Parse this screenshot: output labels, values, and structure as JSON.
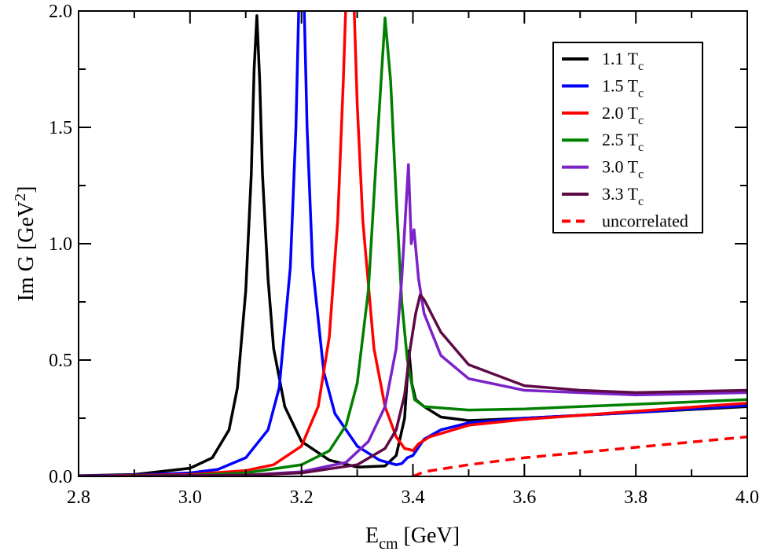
{
  "chart_data": {
    "type": "line",
    "xlabel": {
      "main": "E",
      "sub": "cm",
      "rest": " [GeV]"
    },
    "ylabel": {
      "main": "Im G [GeV",
      "sup": "2",
      "rest": "]"
    },
    "xlim": [
      2.8,
      4.0
    ],
    "ylim": [
      0.0,
      2.0
    ],
    "x_ticks": [
      "2.8",
      "3.0",
      "3.2",
      "3.4",
      "3.6",
      "3.8",
      "4.0"
    ],
    "y_ticks": [
      "0.0",
      "0.5",
      "1.0",
      "1.5",
      "2.0"
    ],
    "grid": false,
    "legend_position": "top-right",
    "series": [
      {
        "name_main": "1.1 T",
        "name_sub": "c",
        "color": "#000000",
        "dash": false,
        "points": [
          [
            2.8,
            0.003
          ],
          [
            2.9,
            0.008
          ],
          [
            3.0,
            0.035
          ],
          [
            3.04,
            0.08
          ],
          [
            3.055,
            0.14
          ],
          [
            3.07,
            0.2
          ],
          [
            3.085,
            0.38
          ],
          [
            3.1,
            0.8
          ],
          [
            3.11,
            1.3
          ],
          [
            3.115,
            1.75
          ],
          [
            3.12,
            1.98
          ],
          [
            3.125,
            1.7
          ],
          [
            3.13,
            1.3
          ],
          [
            3.14,
            0.85
          ],
          [
            3.15,
            0.55
          ],
          [
            3.17,
            0.3
          ],
          [
            3.2,
            0.15
          ],
          [
            3.25,
            0.07
          ],
          [
            3.3,
            0.04
          ],
          [
            3.35,
            0.045
          ],
          [
            3.37,
            0.09
          ],
          [
            3.385,
            0.25
          ],
          [
            3.393,
            0.54
          ],
          [
            3.398,
            0.4
          ],
          [
            3.405,
            0.33
          ],
          [
            3.42,
            0.3
          ],
          [
            3.45,
            0.255
          ],
          [
            3.5,
            0.24
          ],
          [
            3.6,
            0.25
          ],
          [
            3.8,
            0.275
          ],
          [
            4.0,
            0.3
          ]
        ]
      },
      {
        "name_main": "1.5 T",
        "name_sub": "c",
        "color": "#0000ff",
        "dash": false,
        "points": [
          [
            2.8,
            0.002
          ],
          [
            2.9,
            0.006
          ],
          [
            3.0,
            0.015
          ],
          [
            3.05,
            0.03
          ],
          [
            3.1,
            0.08
          ],
          [
            3.14,
            0.2
          ],
          [
            3.16,
            0.38
          ],
          [
            3.18,
            0.9
          ],
          [
            3.19,
            1.5
          ],
          [
            3.197,
            2.2
          ],
          [
            3.203,
            2.2
          ],
          [
            3.21,
            1.5
          ],
          [
            3.22,
            0.9
          ],
          [
            3.24,
            0.45
          ],
          [
            3.26,
            0.27
          ],
          [
            3.3,
            0.13
          ],
          [
            3.34,
            0.07
          ],
          [
            3.37,
            0.05
          ],
          [
            3.38,
            0.055
          ],
          [
            3.39,
            0.08
          ],
          [
            3.4,
            0.09
          ],
          [
            3.42,
            0.16
          ],
          [
            3.45,
            0.2
          ],
          [
            3.5,
            0.23
          ],
          [
            3.6,
            0.25
          ],
          [
            3.8,
            0.275
          ],
          [
            4.0,
            0.305
          ]
        ]
      },
      {
        "name_main": "2.0 T",
        "name_sub": "c",
        "color": "#ff0000",
        "dash": false,
        "points": [
          [
            2.8,
            0.001
          ],
          [
            3.0,
            0.008
          ],
          [
            3.1,
            0.025
          ],
          [
            3.15,
            0.05
          ],
          [
            3.2,
            0.13
          ],
          [
            3.23,
            0.3
          ],
          [
            3.25,
            0.6
          ],
          [
            3.265,
            1.1
          ],
          [
            3.275,
            1.7
          ],
          [
            3.282,
            2.2
          ],
          [
            3.292,
            2.2
          ],
          [
            3.3,
            1.6
          ],
          [
            3.31,
            1.1
          ],
          [
            3.33,
            0.55
          ],
          [
            3.35,
            0.3
          ],
          [
            3.37,
            0.17
          ],
          [
            3.385,
            0.12
          ],
          [
            3.395,
            0.115
          ],
          [
            3.4,
            0.11
          ],
          [
            3.41,
            0.14
          ],
          [
            3.43,
            0.17
          ],
          [
            3.5,
            0.22
          ],
          [
            3.6,
            0.245
          ],
          [
            3.8,
            0.28
          ],
          [
            4.0,
            0.315
          ]
        ]
      },
      {
        "name_main": "2.5 T",
        "name_sub": "c",
        "color": "#008000",
        "dash": false,
        "points": [
          [
            2.8,
            0.001
          ],
          [
            3.0,
            0.005
          ],
          [
            3.1,
            0.015
          ],
          [
            3.2,
            0.05
          ],
          [
            3.25,
            0.11
          ],
          [
            3.28,
            0.22
          ],
          [
            3.3,
            0.4
          ],
          [
            3.32,
            0.8
          ],
          [
            3.335,
            1.4
          ],
          [
            3.35,
            1.97
          ],
          [
            3.36,
            1.7
          ],
          [
            3.37,
            1.2
          ],
          [
            3.38,
            0.75
          ],
          [
            3.39,
            0.5
          ],
          [
            3.403,
            0.33
          ],
          [
            3.42,
            0.3
          ],
          [
            3.5,
            0.285
          ],
          [
            3.6,
            0.29
          ],
          [
            3.8,
            0.31
          ],
          [
            4.0,
            0.33
          ]
        ]
      },
      {
        "name_main": "3.0 T",
        "name_sub": "c",
        "color": "#7b22c8",
        "dash": false,
        "points": [
          [
            2.8,
            0.001
          ],
          [
            3.1,
            0.005
          ],
          [
            3.2,
            0.02
          ],
          [
            3.28,
            0.06
          ],
          [
            3.32,
            0.15
          ],
          [
            3.35,
            0.3
          ],
          [
            3.37,
            0.55
          ],
          [
            3.38,
            0.85
          ],
          [
            3.392,
            1.34
          ],
          [
            3.397,
            1.0
          ],
          [
            3.402,
            1.06
          ],
          [
            3.41,
            0.85
          ],
          [
            3.42,
            0.7
          ],
          [
            3.45,
            0.52
          ],
          [
            3.5,
            0.42
          ],
          [
            3.6,
            0.37
          ],
          [
            3.8,
            0.35
          ],
          [
            4.0,
            0.36
          ]
        ]
      },
      {
        "name_main": "3.3 T",
        "name_sub": "c",
        "color": "#5e0a44",
        "dash": false,
        "points": [
          [
            2.8,
            0.001
          ],
          [
            3.1,
            0.005
          ],
          [
            3.2,
            0.015
          ],
          [
            3.3,
            0.05
          ],
          [
            3.35,
            0.12
          ],
          [
            3.37,
            0.2
          ],
          [
            3.385,
            0.35
          ],
          [
            3.395,
            0.55
          ],
          [
            3.405,
            0.7
          ],
          [
            3.413,
            0.78
          ],
          [
            3.42,
            0.76
          ],
          [
            3.45,
            0.62
          ],
          [
            3.5,
            0.48
          ],
          [
            3.6,
            0.39
          ],
          [
            3.7,
            0.37
          ],
          [
            3.8,
            0.36
          ],
          [
            4.0,
            0.37
          ]
        ]
      },
      {
        "name_main": "uncorrelated",
        "name_sub": "",
        "color": "#ff0000",
        "dash": true,
        "points": [
          [
            3.4,
            0.0
          ],
          [
            3.42,
            0.02
          ],
          [
            3.5,
            0.05
          ],
          [
            3.6,
            0.08
          ],
          [
            3.8,
            0.125
          ],
          [
            4.0,
            0.17
          ]
        ]
      }
    ]
  }
}
